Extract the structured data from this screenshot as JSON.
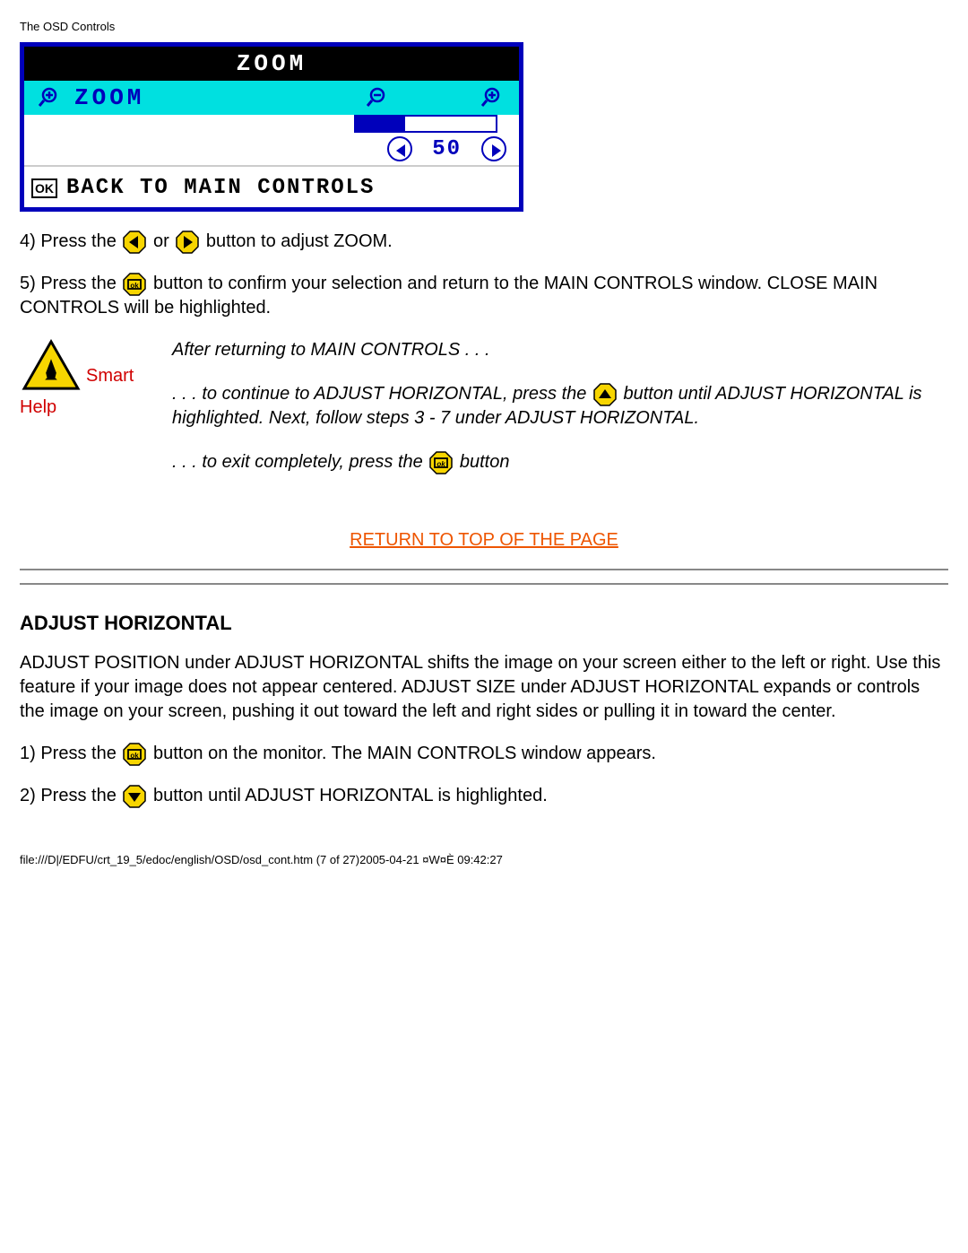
{
  "page_header": "The OSD Controls",
  "osd": {
    "title": "ZOOM",
    "row_label": "ZOOM",
    "value": 50,
    "value_percent": 35,
    "back_label": "BACK TO MAIN CONTROLS",
    "ok_text": "OK",
    "colors": {
      "border": "#0000bb",
      "cyan": "#00e0e0",
      "title_bg": "#000000",
      "title_fg": "#ffffff",
      "ink": "#0000bb"
    }
  },
  "step4": {
    "pre": "4) Press the ",
    "mid": " or ",
    "post": " button to adjust ZOOM."
  },
  "step5": {
    "pre": "5) Press the ",
    "post": " button to confirm your selection and return to the MAIN CONTROLS window. CLOSE MAIN CONTROLS will be highlighted."
  },
  "smart": {
    "label1": "Smart",
    "label2": "Help",
    "para1": "After returning to MAIN CONTROLS . . .",
    "para2_pre": ". . . to continue to ADJUST HORIZONTAL, press the ",
    "para2_post": " button until ADJUST HORIZONTAL is highlighted. Next, follow steps 3 - 7 under ADJUST HORIZONTAL.",
    "para3_pre": ". . . to exit completely, press the ",
    "para3_post": " button"
  },
  "top_link": "RETURN TO TOP OF THE PAGE",
  "section": {
    "heading": "ADJUST HORIZONTAL",
    "para": "ADJUST POSITION under ADJUST HORIZONTAL shifts the image on your screen either to the left or right. Use this feature if your image does not appear centered. ADJUST SIZE under ADJUST HORIZONTAL expands or controls the image on your screen, pushing it out toward the left and right sides or pulling it in toward the center.",
    "step1_pre": "1) Press the ",
    "step1_post": " button on the monitor. The MAIN CONTROLS window appears.",
    "step2_pre": "2) Press the ",
    "step2_post": " button until ADJUST HORIZONTAL is highlighted."
  },
  "footer": "file:///D|/EDFU/crt_19_5/edoc/english/OSD/osd_cont.htm (7 of 27)2005-04-21 ¤W¤È 09:42:27",
  "icons": {
    "btn_fill": "#f7d500",
    "btn_stroke": "#000000",
    "warn_fill": "#f7d500",
    "warn_stroke": "#000000"
  }
}
